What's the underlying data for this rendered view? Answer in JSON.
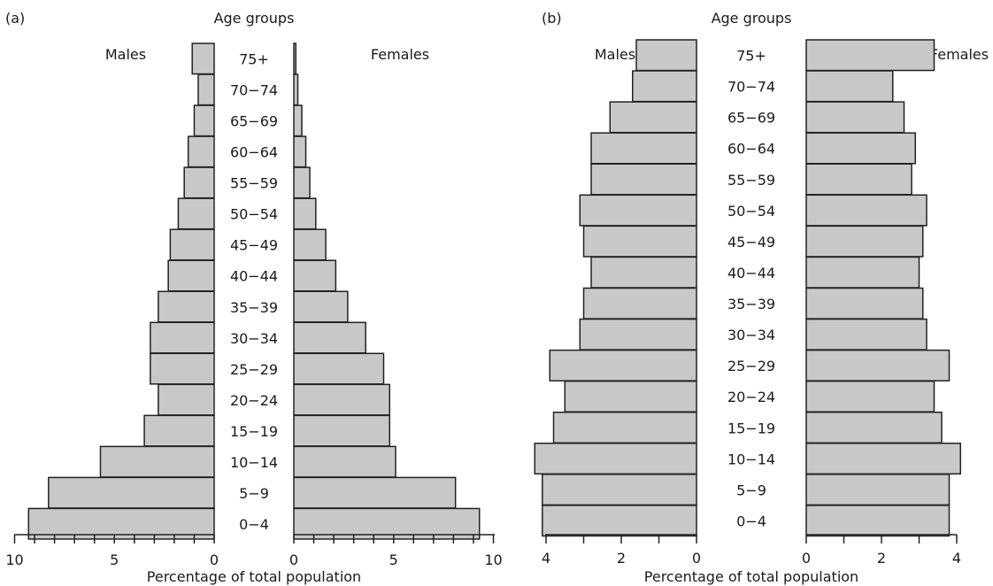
{
  "chart_data": [
    {
      "type": "bar",
      "panel_label": "(a)",
      "title": "Age groups",
      "left_label": "Males",
      "right_label": "Females",
      "xlabel": "Percentage of total population",
      "categories": [
        "75+",
        "70−74",
        "65−69",
        "60−64",
        "55−59",
        "50−54",
        "45−49",
        "40−44",
        "35−39",
        "30−34",
        "25−29",
        "20−24",
        "15−19",
        "10−14",
        "5−9",
        "0−4"
      ],
      "series": [
        {
          "name": "Males",
          "values": [
            1.1,
            0.8,
            1.0,
            1.3,
            1.5,
            1.8,
            2.2,
            2.3,
            2.8,
            3.2,
            3.2,
            2.8,
            3.5,
            5.7,
            8.3,
            9.3
          ]
        },
        {
          "name": "Females",
          "values": [
            0.1,
            0.2,
            0.4,
            0.6,
            0.8,
            1.1,
            1.6,
            2.1,
            2.7,
            3.6,
            4.5,
            4.8,
            4.8,
            5.1,
            8.1,
            9.3
          ]
        }
      ],
      "xlim": [
        0,
        10
      ],
      "major_ticks": [
        10,
        5,
        0
      ],
      "major_tick_labels_left": [
        "10",
        "5",
        "0"
      ],
      "major_tick_labels_right": [
        "0",
        "5",
        "10"
      ],
      "minor_tick_step": 1
    },
    {
      "type": "bar",
      "panel_label": "(b)",
      "title": "Age groups",
      "left_label": "Males",
      "right_label": "Females",
      "xlabel": "Percentage of total population",
      "categories": [
        "75+",
        "70−74",
        "65−69",
        "60−64",
        "55−59",
        "50−54",
        "45−49",
        "40−44",
        "35−39",
        "30−34",
        "25−29",
        "20−24",
        "15−19",
        "10−14",
        "5−9",
        "0−4"
      ],
      "series": [
        {
          "name": "Males",
          "values": [
            1.6,
            1.7,
            2.3,
            2.8,
            2.8,
            3.1,
            3.0,
            2.8,
            3.0,
            3.1,
            3.9,
            3.5,
            3.8,
            4.3,
            4.1,
            4.1
          ]
        },
        {
          "name": "Females",
          "values": [
            3.4,
            2.3,
            2.6,
            2.9,
            2.8,
            3.2,
            3.1,
            3.0,
            3.1,
            3.2,
            3.8,
            3.4,
            3.6,
            4.1,
            3.8,
            3.8
          ]
        }
      ],
      "xlim": [
        0,
        5
      ],
      "major_ticks": [
        4,
        2,
        0
      ],
      "major_tick_labels_left": [
        "4",
        "2",
        "0"
      ],
      "major_tick_labels_right": [
        "0",
        "2",
        "4"
      ],
      "minor_tick_step": 1
    }
  ]
}
